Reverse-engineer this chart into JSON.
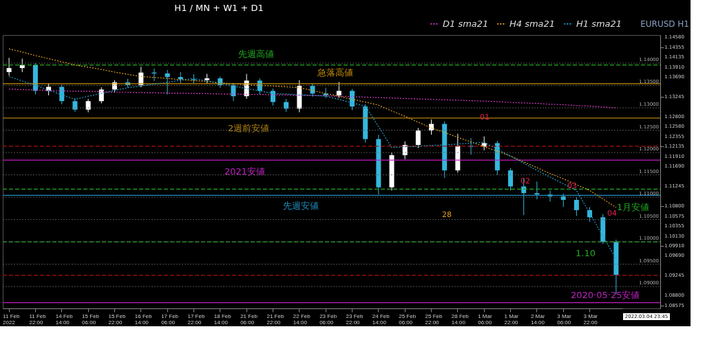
{
  "chart_data": {
    "type": "candlestick",
    "title": "H1 / MN + W1 + D1",
    "categories": [
      "11 Feb 2022",
      null,
      "11 Feb 22:00",
      null,
      "14 Feb 14:00",
      null,
      "15 Feb 06:00",
      null,
      "15 Feb 22:00",
      null,
      "16 Feb 14:00",
      null,
      "17 Feb 06:00",
      null,
      "17 Feb 22:00",
      null,
      "18 Feb 14:00",
      null,
      "21 Feb 06:00",
      null,
      "21 Feb 22:00",
      null,
      "22 Feb 14:00",
      null,
      "23 Feb 06:00",
      null,
      "23 Feb 22:00",
      null,
      "24 Feb 14:00",
      null,
      "25 Feb 06:00",
      null,
      "25 Feb 22:00",
      null,
      "28 Feb 14:00",
      null,
      "1 Mar 06:00",
      null,
      "1 Mar 22:00",
      null,
      "2 Mar 14:00",
      null,
      "3 Mar 06:00",
      null,
      "3 Mar 22:00",
      null,
      null
    ],
    "ohlc": [
      [
        1.138,
        1.1412,
        1.1372,
        1.1389
      ],
      [
        1.1389,
        1.141,
        1.138,
        1.1396
      ],
      [
        1.1396,
        1.14,
        1.133,
        1.1338
      ],
      [
        1.1338,
        1.1355,
        1.1328,
        1.1347
      ],
      [
        1.1347,
        1.1352,
        1.1308,
        1.1315
      ],
      [
        1.1315,
        1.1322,
        1.1291,
        1.1296
      ],
      [
        1.1296,
        1.132,
        1.129,
        1.1315
      ],
      [
        1.1315,
        1.1346,
        1.131,
        1.1341
      ],
      [
        1.1341,
        1.1362,
        1.1335,
        1.1357
      ],
      [
        1.1357,
        1.1365,
        1.1345,
        1.1351
      ],
      [
        1.1351,
        1.1392,
        1.1346,
        1.1379
      ],
      [
        1.1379,
        1.1388,
        1.136,
        1.1377
      ],
      [
        1.1377,
        1.1385,
        1.133,
        1.1369
      ],
      [
        1.1369,
        1.138,
        1.1355,
        1.1364
      ],
      [
        1.1364,
        1.1375,
        1.1355,
        1.1362
      ],
      [
        1.1362,
        1.1376,
        1.1355,
        1.1366
      ],
      [
        1.1366,
        1.137,
        1.1345,
        1.1351
      ],
      [
        1.1351,
        1.1356,
        1.1315,
        1.1326
      ],
      [
        1.1326,
        1.1376,
        1.132,
        1.1361
      ],
      [
        1.1361,
        1.1366,
        1.133,
        1.1338
      ],
      [
        1.1338,
        1.1343,
        1.1305,
        1.1313
      ],
      [
        1.1313,
        1.132,
        1.1291,
        1.1298
      ],
      [
        1.1298,
        1.1362,
        1.129,
        1.1349
      ],
      [
        1.1349,
        1.1355,
        1.1325,
        1.1332
      ],
      [
        1.1332,
        1.1345,
        1.1322,
        1.1328
      ],
      [
        1.1328,
        1.1358,
        1.1322,
        1.1338
      ],
      [
        1.1338,
        1.1342,
        1.1295,
        1.1303
      ],
      [
        1.1303,
        1.1308,
        1.1222,
        1.123
      ],
      [
        1.123,
        1.124,
        1.1106,
        1.1122
      ],
      [
        1.1122,
        1.12,
        1.1115,
        1.1194
      ],
      [
        1.1194,
        1.1225,
        1.1185,
        1.1217
      ],
      [
        1.1217,
        1.1255,
        1.121,
        1.1249
      ],
      [
        1.1249,
        1.1274,
        1.124,
        1.1264
      ],
      [
        1.1264,
        1.127,
        1.1143,
        1.116
      ],
      [
        1.116,
        1.1242,
        1.1155,
        1.1215
      ],
      [
        1.1215,
        1.1232,
        1.1195,
        1.1213
      ],
      [
        1.1213,
        1.1236,
        1.1205,
        1.1221
      ],
      [
        1.1221,
        1.1226,
        1.115,
        1.116
      ],
      [
        1.116,
        1.1165,
        1.1115,
        1.1124
      ],
      [
        1.1124,
        1.1143,
        1.106,
        1.1109
      ],
      [
        1.1109,
        1.1135,
        1.1095,
        1.1106
      ],
      [
        1.1106,
        1.1115,
        1.109,
        1.1102
      ],
      [
        1.1102,
        1.1108,
        1.1078,
        1.1094
      ],
      [
        1.1094,
        1.11,
        1.1058,
        1.1071
      ],
      [
        1.1071,
        1.1078,
        1.1045,
        1.1055
      ],
      [
        1.1055,
        1.1062,
        1.0995,
        1.1
      ],
      [
        1.1,
        1.1005,
        1.0883,
        1.0926
      ]
    ],
    "colors": [
      "#ffffff",
      "#ffffff",
      "#35b7dd",
      "#ffffff",
      "#35b7dd",
      "#35b7dd",
      "#ffffff",
      "#ffffff",
      "#ffffff",
      "#35b7dd",
      "#ffffff",
      "#35b7dd",
      "#35b7dd",
      "#35b7dd",
      "#35b7dd",
      "#ffffff",
      "#35b7dd",
      "#35b7dd",
      "#ffffff",
      "#35b7dd",
      "#35b7dd",
      "#35b7dd",
      "#ffffff",
      "#35b7dd",
      "#35b7dd",
      "#ffffff",
      "#35b7dd",
      "#35b7dd",
      "#35b7dd",
      "#ffffff",
      "#ffffff",
      "#ffffff",
      "#ffffff",
      "#35b7dd",
      "#ffffff",
      "#35b7dd",
      "#ffffff",
      "#35b7dd",
      "#35b7dd",
      "#35b7dd",
      "#35b7dd",
      "#35b7dd",
      "#35b7dd",
      "#35b7dd",
      "#35b7dd",
      "#35b7dd",
      "#35b7dd"
    ],
    "series": [
      {
        "name": "D1 sma21",
        "type": "line",
        "color": "#d63ac8",
        "line_style": "dotted",
        "values": [
          1.1342,
          1.1341,
          1.134,
          1.1339,
          1.1338,
          1.1337,
          1.1337,
          1.1336,
          1.1335,
          1.1335,
          1.1334,
          1.1334,
          1.1333,
          1.1333,
          1.1332,
          1.1332,
          1.1331,
          1.1331,
          1.133,
          1.133,
          1.1329,
          1.1329,
          1.1328,
          1.1328,
          1.1327,
          1.1326,
          1.1325,
          1.1324,
          1.1323,
          1.1322,
          1.1321,
          1.132,
          1.1319,
          1.1318,
          1.1317,
          1.1316,
          1.1315,
          1.1314,
          1.1312,
          1.1311,
          1.131,
          1.1308,
          1.1307,
          1.1305,
          1.1304,
          1.1302,
          1.13
        ]
      },
      {
        "name": "H4 sma21",
        "type": "line",
        "color": "#e0a020",
        "line_style": "dotted",
        "values": [
          1.1432,
          1.1425,
          1.1417,
          1.141,
          1.1403,
          1.1396,
          1.1391,
          1.1386,
          1.138,
          1.1375,
          1.137,
          1.1368,
          1.1366,
          1.1363,
          1.1361,
          1.1359,
          1.1356,
          1.1354,
          1.1352,
          1.135,
          1.1349,
          1.1347,
          1.1345,
          1.1339,
          1.1332,
          1.1326,
          1.1319,
          1.1313,
          1.1306,
          1.1293,
          1.1281,
          1.1268,
          1.1255,
          1.1245,
          1.1234,
          1.1224,
          1.1213,
          1.1203,
          1.1192,
          1.1179,
          1.1166,
          1.1153,
          1.1141,
          1.1128,
          1.1115,
          1.1096,
          1.1077
        ]
      },
      {
        "name": "H1 sma21",
        "type": "line",
        "color": "#1fa0d0",
        "line_style": "dotted",
        "values": [
          1.137,
          1.136,
          1.135,
          1.134,
          1.1329,
          1.1319,
          1.1326,
          1.1332,
          1.1339,
          1.1345,
          1.1349,
          1.1353,
          1.1357,
          1.1362,
          1.1366,
          1.136,
          1.1355,
          1.1349,
          1.1343,
          1.1338,
          1.1332,
          1.1331,
          1.1329,
          1.1328,
          1.1326,
          1.1319,
          1.1311,
          1.1304,
          1.1258,
          1.1211,
          1.1213,
          1.1214,
          1.1216,
          1.1217,
          1.1219,
          1.1221,
          1.1223,
          1.1207,
          1.1192,
          1.1176,
          1.116,
          1.1145,
          1.113,
          1.1115,
          1.1064,
          1.1013,
          1.0962
        ]
      }
    ],
    "ylim": [
      1.0851,
      1.1463
    ],
    "yticks": [
      {
        "value": 1.1458,
        "label": "1.14580"
      },
      {
        "value": 1.14355,
        "label": "1.14355"
      },
      {
        "value": 1.14135,
        "label": "1.14135"
      },
      {
        "value": 1.1391,
        "label": "1.13910"
      },
      {
        "value": 1.1369,
        "label": "1.13690"
      },
      {
        "value": 1.13245,
        "label": "1.13245"
      },
      {
        "value": 1.128,
        "label": "1.12800"
      },
      {
        "value": 1.1258,
        "label": "1.12580"
      },
      {
        "value": 1.12355,
        "label": "1.12355"
      },
      {
        "value": 1.12135,
        "label": "1.12135"
      },
      {
        "value": 1.1191,
        "label": "1.11910"
      },
      {
        "value": 1.1169,
        "label": "1.11690"
      },
      {
        "value": 1.11245,
        "label": "1.11245"
      },
      {
        "value": 1.108,
        "label": "1.10800"
      },
      {
        "value": 1.10575,
        "label": "1.10575"
      },
      {
        "value": 1.10355,
        "label": "1.10355"
      },
      {
        "value": 1.1013,
        "label": "1.10130"
      },
      {
        "value": 1.0991,
        "label": "1.09910"
      },
      {
        "value": 1.0969,
        "label": "1.09690"
      },
      {
        "value": 1.09245,
        "label": "1.09245"
      },
      {
        "value": 1.088,
        "label": "1.08800"
      },
      {
        "value": 1.08575,
        "label": "1.08575"
      }
    ],
    "legend": "top",
    "ref_lines": [
      {
        "axis": "y",
        "value": 1.1396,
        "label": "先週高値",
        "color": "#22aa22",
        "line_style": "dashed"
      },
      {
        "axis": "y",
        "value": 1.1354,
        "label": "急落高値",
        "color": "#c8900a",
        "line_style": "solid"
      },
      {
        "axis": "y",
        "value": 1.1277,
        "label": "2週前安値",
        "color": "#b08010",
        "line_style": "solid"
      },
      {
        "axis": "y",
        "value": 1.1214,
        "color": "#aa1111",
        "line_style": "dashed"
      },
      {
        "axis": "y",
        "value": 1.1183,
        "label": "2021安値",
        "color": "#c020c0",
        "line_style": "solid"
      },
      {
        "axis": "y",
        "value": 1.1118,
        "label": "1月安値",
        "color": "#22aa22",
        "line_style": "dashed"
      },
      {
        "axis": "y",
        "value": 1.1104,
        "label": "先週安値",
        "color": "#1f8fbf",
        "line_style": "solid"
      },
      {
        "axis": "y",
        "value": 1.1,
        "label": "1.10",
        "color": "#22aa22",
        "line_style": "dashed"
      },
      {
        "axis": "y",
        "value": 1.0925,
        "color": "#aa1111",
        "line_style": "dashed"
      },
      {
        "axis": "y",
        "value": 1.0864,
        "label": "2020·05·25安値",
        "color": "#c020c0",
        "line_style": "solid"
      },
      {
        "axis": "y",
        "value": 1.14,
        "label": "1.14000",
        "color": "#666666",
        "line_style": "dotted"
      },
      {
        "axis": "y",
        "value": 1.135,
        "label": "1.13500",
        "color": "#666666",
        "line_style": "dotted"
      },
      {
        "axis": "y",
        "value": 1.13,
        "label": "1.13000",
        "color": "#666666",
        "line_style": "dotted"
      },
      {
        "axis": "y",
        "value": 1.125,
        "label": "1.12500",
        "color": "#666666",
        "line_style": "dotted"
      },
      {
        "axis": "y",
        "value": 1.12,
        "label": "1.12000",
        "color": "#666666",
        "line_style": "dotted"
      },
      {
        "axis": "y",
        "value": 1.115,
        "label": "1.11500",
        "color": "#666666",
        "line_style": "dotted"
      },
      {
        "axis": "y",
        "value": 1.11,
        "label": "1.11000",
        "color": "#666666",
        "line_style": "dotted"
      },
      {
        "axis": "y",
        "value": 1.105,
        "label": "1.10500",
        "color": "#666666",
        "line_style": "dotted"
      },
      {
        "axis": "y",
        "value": 1.1,
        "label": "1.10000",
        "color": "#666666",
        "line_style": "dotted"
      },
      {
        "axis": "y",
        "value": 1.095,
        "label": "1.09500",
        "color": "#666666",
        "line_style": "dotted"
      },
      {
        "axis": "y",
        "value": 1.09,
        "label": "1.09000",
        "color": "#666666",
        "line_style": "dotted"
      }
    ],
    "annotations": [
      "01",
      "02",
      "03",
      "04",
      "28",
      "EURUSD H1",
      "2022.03.04 23:45"
    ]
  }
}
